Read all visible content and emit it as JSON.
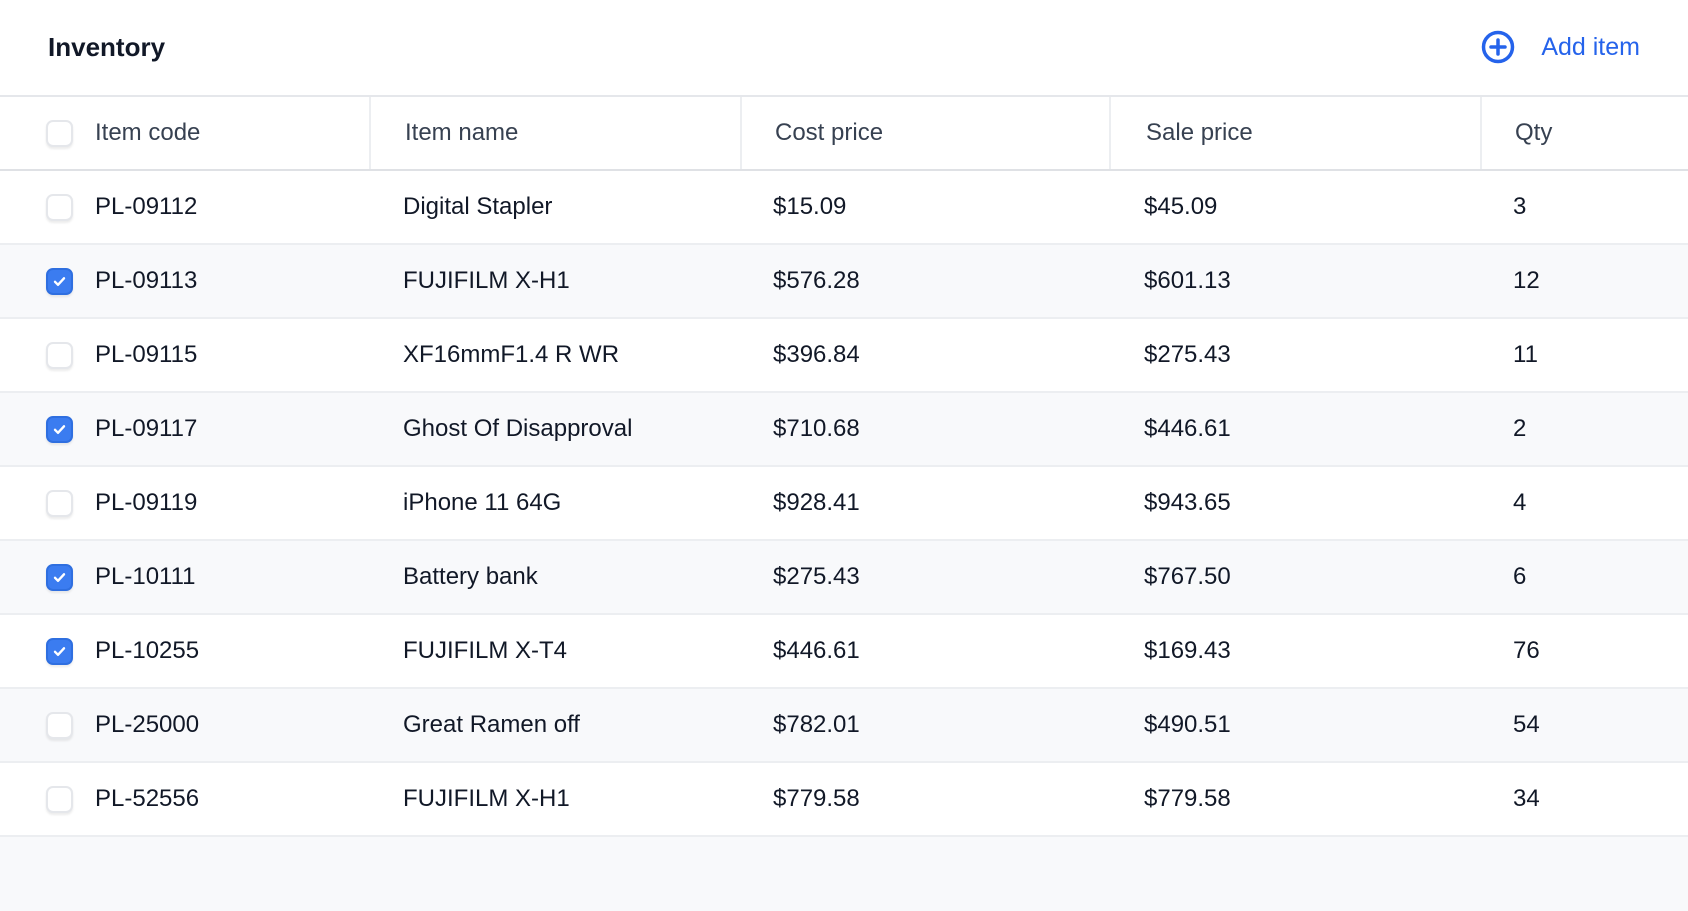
{
  "header": {
    "title": "Inventory",
    "add_label": "Add item",
    "add_icon": "plus-circle-icon",
    "accent": "#2563eb"
  },
  "table": {
    "columns": [
      "Item code",
      "Item name",
      "Cost price",
      "Sale price",
      "Qty"
    ],
    "rows": [
      {
        "checked": false,
        "code": "PL-09112",
        "name": "Digital Stapler",
        "cost": "$15.09",
        "sale": "$45.09",
        "qty": "3"
      },
      {
        "checked": true,
        "code": "PL-09113",
        "name": "FUJIFILM X-H1",
        "cost": "$576.28",
        "sale": "$601.13",
        "qty": "12"
      },
      {
        "checked": false,
        "code": "PL-09115",
        "name": "XF16mmF1.4 R WR",
        "cost": "$396.84",
        "sale": "$275.43",
        "qty": "11"
      },
      {
        "checked": true,
        "code": "PL-09117",
        "name": "Ghost Of Disapproval",
        "cost": "$710.68",
        "sale": "$446.61",
        "qty": "2"
      },
      {
        "checked": false,
        "code": "PL-09119",
        "name": "iPhone 11 64G",
        "cost": "$928.41",
        "sale": "$943.65",
        "qty": "4"
      },
      {
        "checked": true,
        "code": "PL-10111",
        "name": "Battery bank",
        "cost": "$275.43",
        "sale": "$767.50",
        "qty": "6"
      },
      {
        "checked": true,
        "code": "PL-10255",
        "name": "FUJIFILM X-T4",
        "cost": "$446.61",
        "sale": "$169.43",
        "qty": "76"
      },
      {
        "checked": false,
        "code": "PL-25000",
        "name": "Great Ramen off",
        "cost": "$782.01",
        "sale": "$490.51",
        "qty": "54"
      },
      {
        "checked": false,
        "code": "PL-52556",
        "name": "FUJIFILM X-H1",
        "cost": "$779.58",
        "sale": "$779.58",
        "qty": "34"
      }
    ]
  }
}
